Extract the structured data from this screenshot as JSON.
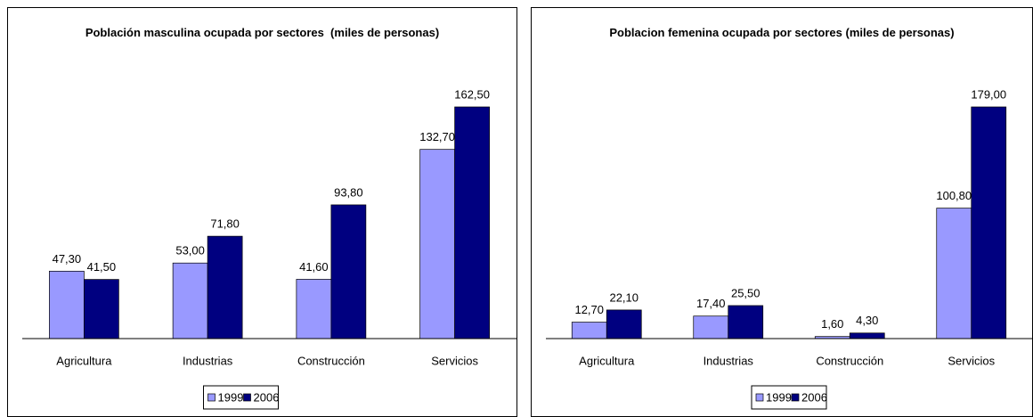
{
  "chart_data": [
    {
      "type": "bar",
      "title": "Población masculina ocupada por sectores  (miles de personas)",
      "categories": [
        "Agricultura",
        "Industrias",
        "Construcción",
        "Servicios"
      ],
      "series": [
        {
          "name": "1999",
          "color": "#9999ff",
          "values": [
            47.3,
            53.0,
            41.6,
            132.7
          ],
          "value_labels": [
            "47,30",
            "53,00",
            "41,60",
            "132,70"
          ]
        },
        {
          "name": "2006",
          "color": "#000080",
          "values": [
            41.5,
            71.8,
            93.8,
            162.5
          ],
          "value_labels": [
            "41,50",
            "71,80",
            "93,80",
            "162,50"
          ]
        }
      ],
      "legend": "bottom"
    },
    {
      "type": "bar",
      "title": "Poblacion femenina ocupada por sectores (miles de personas)",
      "categories": [
        "Agricultura",
        "Industrias",
        "Construcción",
        "Servicios"
      ],
      "series": [
        {
          "name": "1999",
          "color": "#9999ff",
          "values": [
            12.7,
            17.4,
            1.6,
            100.8
          ],
          "value_labels": [
            "12,70",
            "17,40",
            "1,60",
            "100,80"
          ]
        },
        {
          "name": "2006",
          "color": "#000080",
          "values": [
            22.1,
            25.5,
            4.3,
            179.0
          ],
          "value_labels": [
            "22,10",
            "25,50",
            "4,30",
            "179,00"
          ]
        }
      ],
      "legend": "bottom"
    }
  ]
}
